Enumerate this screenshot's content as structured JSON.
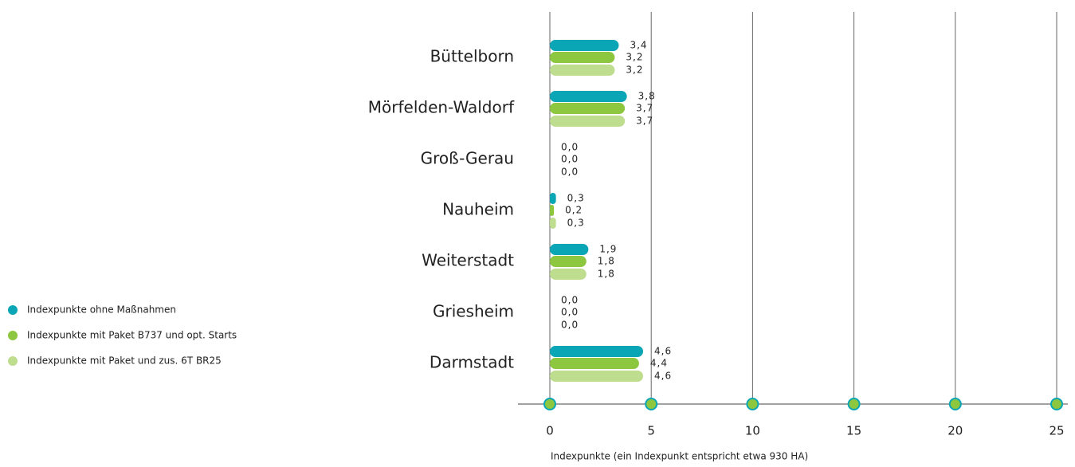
{
  "chart_data": {
    "type": "bar",
    "orientation": "horizontal",
    "categories": [
      "Büttelborn",
      "Mörfelden-Waldorf",
      "Groß-Gerau",
      "Nauheim",
      "Weiterstadt",
      "Griesheim",
      "Darmstadt"
    ],
    "series": [
      {
        "name": "Indexpunkte ohne Maßnahmen",
        "color": "#0aa6b5",
        "values": [
          3.4,
          3.8,
          0.0,
          0.3,
          1.9,
          0.0,
          4.6
        ],
        "value_labels": [
          "3,4",
          "3,8",
          "0,0",
          "0,3",
          "1,9",
          "0,0",
          "4,6"
        ]
      },
      {
        "name": "Indexpunkte mit Paket B737 und opt. Starts",
        "color": "#8dc63f",
        "values": [
          3.2,
          3.7,
          0.0,
          0.2,
          1.8,
          0.0,
          4.4
        ],
        "value_labels": [
          "3,2",
          "3,7",
          "0,0",
          "0,2",
          "1,8",
          "0,0",
          "4,4"
        ]
      },
      {
        "name": "Indexpunkte mit Paket und zus. 6T BR25",
        "color": "#bedd8e",
        "values": [
          3.2,
          3.7,
          0.0,
          0.3,
          1.8,
          0.0,
          4.6
        ],
        "value_labels": [
          "3,2",
          "3,7",
          "0,0",
          "0,3",
          "1,8",
          "0,0",
          "4,6"
        ]
      }
    ],
    "xlabel": "Indexpunkte (ein Indexpunkt entspricht etwa 930 HA)",
    "xlim": [
      0,
      25
    ],
    "xticks": [
      0,
      5,
      10,
      15,
      20,
      25
    ],
    "grid": true,
    "legend": "left"
  }
}
